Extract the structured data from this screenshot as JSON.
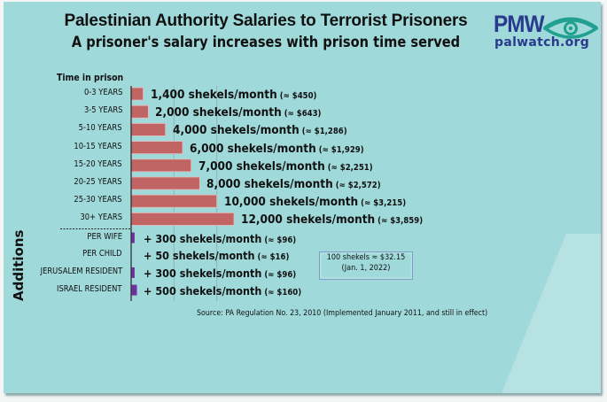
{
  "header": {
    "title": "Palestinian Authority Salaries to Terrorist Prisoners",
    "subtitle": "A prisoner's salary increases with prison time served"
  },
  "logo": {
    "brand": "PMW",
    "site": "palwatch.org"
  },
  "colors": {
    "background": "#a0d9da",
    "bar_base": "#c06464",
    "bar_addition": "#7030a0",
    "logo_blue": "#2a3a8c",
    "logo_teal": "#20a090"
  },
  "chart_data": {
    "type": "bar",
    "orientation": "horizontal",
    "title": "Palestinian Authority Salaries to Terrorist Prisoners",
    "subtitle": "A prisoner's salary increases with prison time served",
    "category_axis_label": "Time in prison",
    "group_label_additions": "Additions",
    "unit": "shekels/month",
    "xlim": [
      0,
      13000
    ],
    "gridlines": [
      5000,
      10000
    ],
    "grid": true,
    "series": [
      {
        "name": "Time in prison",
        "categories": [
          "0-3 YEARS",
          "3-5 YEARS",
          "5-10 YEARS",
          "10-15 YEARS",
          "15-20 YEARS",
          "20-25 YEARS",
          "25-30 YEARS",
          "30+ YEARS"
        ],
        "values": [
          1400,
          2000,
          4000,
          6000,
          7000,
          8000,
          10000,
          12000
        ],
        "labels": [
          "1,400 shekels/month",
          "2,000 shekels/month",
          "4,000 shekels/month",
          "6,000 shekels/month",
          "7,000 shekels/month",
          "8,000 shekels/month",
          "10,000 shekels/month",
          "12,000 shekels/month"
        ],
        "usd_labels": [
          "(≈ $450)",
          "(≈ $643)",
          "(≈ $1,286)",
          "(≈ $1,929)",
          "(≈ $2,251)",
          "(≈ $2,572)",
          "(≈ $3,215)",
          "(≈ $3,859)"
        ]
      },
      {
        "name": "Additions",
        "categories": [
          "PER WIFE",
          "PER CHILD",
          "JERUSALEM RESIDENT",
          "ISRAEL RESIDENT"
        ],
        "values": [
          300,
          50,
          300,
          500
        ],
        "labels": [
          "+ 300 shekels/month",
          "+ 50 shekels/month",
          "+ 300 shekels/month",
          "+ 500 shekels/month"
        ],
        "usd_labels": [
          "(≈ $96)",
          "(≈ $16)",
          "(≈ $96)",
          "(≈ $160)"
        ]
      }
    ],
    "annotations": {
      "exchange_rate": "100 shekels ≈ $32.15",
      "exchange_date": "(Jan. 1, 2022)",
      "source": "Source: PA Regulation No. 23, 2010 (Implemented January 2011, and still in effect)"
    }
  }
}
